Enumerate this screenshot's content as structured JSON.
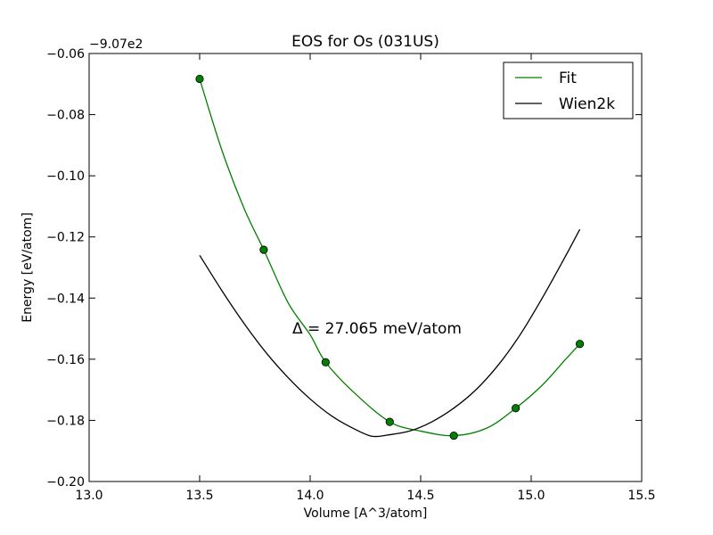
{
  "chart_data": {
    "type": "line",
    "title": "EOS for Os (031US)",
    "xlabel": "Volume [A^3/atom]",
    "ylabel": "Energy [eV/atom]",
    "offset_label": "−9.07e2",
    "xlim": [
      13.0,
      15.5
    ],
    "ylim": [
      -0.2,
      -0.06
    ],
    "xticks": [
      13.0,
      13.5,
      14.0,
      14.5,
      15.0,
      15.5
    ],
    "xtick_labels": [
      "13.0",
      "13.5",
      "14.0",
      "14.5",
      "15.0",
      "15.5"
    ],
    "yticks": [
      -0.06,
      -0.08,
      -0.1,
      -0.12,
      -0.14,
      -0.16,
      -0.18,
      -0.2
    ],
    "ytick_labels": [
      "−0.06",
      "−0.08",
      "−0.10",
      "−0.12",
      "−0.14",
      "−0.16",
      "−0.18",
      "−0.20"
    ],
    "grid": false,
    "legend_position": "top-right",
    "annotation": "Δ = 27.065 meV/atom",
    "series": [
      {
        "name": "Fit",
        "color": "#008000",
        "kind": "line",
        "x": [
          13.5,
          13.6,
          13.7,
          13.79,
          13.9,
          14.0,
          14.07,
          14.2,
          14.36,
          14.5,
          14.65,
          14.8,
          14.93,
          15.05,
          15.15,
          15.22
        ],
        "y": [
          -0.0683,
          -0.0915,
          -0.1105,
          -0.1242,
          -0.1415,
          -0.152,
          -0.161,
          -0.171,
          -0.1805,
          -0.1835,
          -0.185,
          -0.1825,
          -0.176,
          -0.1685,
          -0.1605,
          -0.155
        ]
      },
      {
        "name": "Wien2k",
        "color": "#000000",
        "kind": "line",
        "x": [
          13.5,
          13.6,
          13.7,
          13.8,
          13.9,
          14.0,
          14.1,
          14.2,
          14.28,
          14.35,
          14.45,
          14.55,
          14.65,
          14.75,
          14.85,
          14.95,
          15.05,
          15.15,
          15.22
        ],
        "y": [
          -0.126,
          -0.1375,
          -0.1482,
          -0.1578,
          -0.166,
          -0.173,
          -0.1787,
          -0.1828,
          -0.1852,
          -0.1848,
          -0.1835,
          -0.1805,
          -0.176,
          -0.17,
          -0.162,
          -0.152,
          -0.14,
          -0.127,
          -0.1175
        ]
      },
      {
        "name": "data points",
        "color": "#008000",
        "kind": "markers",
        "x": [
          13.5,
          13.79,
          14.07,
          14.36,
          14.65,
          14.93,
          15.22
        ],
        "y": [
          -0.0683,
          -0.1242,
          -0.161,
          -0.1805,
          -0.185,
          -0.176,
          -0.155
        ]
      }
    ]
  }
}
